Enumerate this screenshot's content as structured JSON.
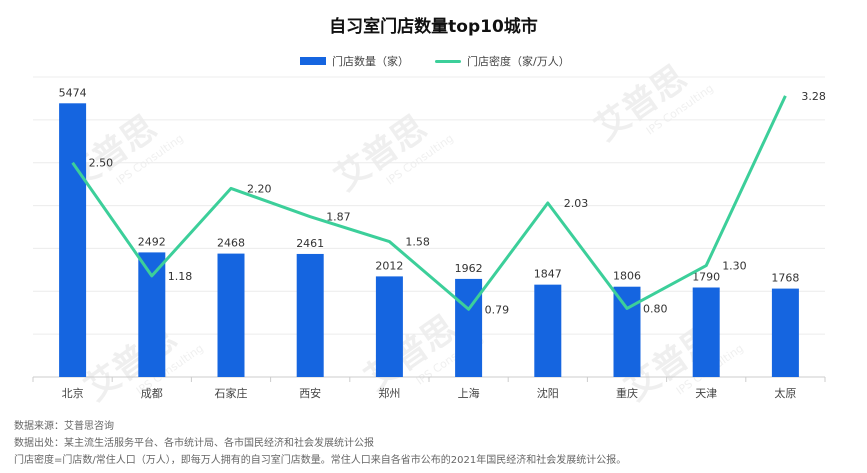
{
  "chart_data": {
    "type": "bar",
    "title": "自习室门店数量top10城市",
    "categories": [
      "北京",
      "成都",
      "石家庄",
      "西安",
      "郑州",
      "上海",
      "沈阳",
      "重庆",
      "天津",
      "太原"
    ],
    "series": [
      {
        "name": "门店数量（家）",
        "type": "bar",
        "values": [
          5474,
          2492,
          2468,
          2461,
          2012,
          1962,
          1847,
          1806,
          1790,
          1768
        ],
        "labels": [
          "5474",
          "2492",
          "2468",
          "2461",
          "2012",
          "1962",
          "1847",
          "1806",
          "1790",
          "1768"
        ]
      },
      {
        "name": "门店密度（家/万人）",
        "type": "line",
        "values": [
          2.5,
          1.18,
          2.2,
          1.87,
          1.58,
          0.79,
          2.03,
          0.8,
          1.3,
          3.28
        ],
        "labels": [
          "2.50",
          "1.18",
          "2.20",
          "1.87",
          "1.58",
          "0.79",
          "2.03",
          "0.80",
          "1.30",
          "3.28"
        ]
      }
    ],
    "ylim": [
      0,
      6000
    ],
    "y2lim": [
      0,
      3.5
    ],
    "grid": true,
    "legend_position": "top-center",
    "xlabel": "",
    "ylabel": ""
  },
  "colors": {
    "bar": "#1565e0",
    "line": "#3ccf9a",
    "grid": "#ececec",
    "axis": "#cccccc"
  },
  "watermark": {
    "brand": "艾普思",
    "sub": "IPS Consulting"
  },
  "footnotes": {
    "source": "数据来源：艾普思咨询",
    "origin": "数据出处：某主流生活服务平台、各市统计局、各市国民经济和社会发展统计公报",
    "note": "门店密度=门店数/常住人口（万人），即每万人拥有的自习室门店数量。常住人口来自各省市公布的2021年国民经济和社会发展统计公报。"
  }
}
